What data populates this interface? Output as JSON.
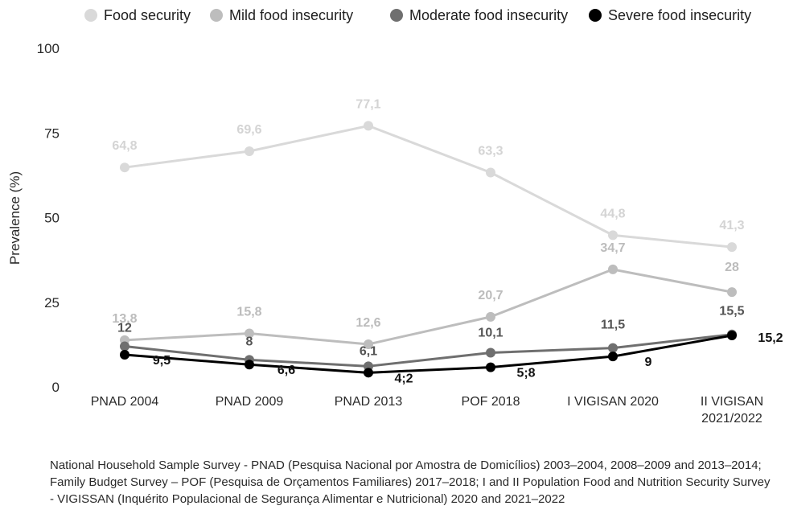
{
  "chart_data": {
    "type": "line",
    "ylabel": "Prevalence (%)",
    "ylim": [
      0,
      100
    ],
    "yticks": [
      "0",
      "25",
      "50",
      "75",
      "100"
    ],
    "categories": [
      "PNAD 2004",
      "PNAD 2009",
      "PNAD 2013",
      "POF 2018",
      "I VIGISAN 2020",
      "II VIGISAN\n2021/2022"
    ],
    "legend_position": "top",
    "grid": false,
    "series": [
      {
        "name": "Food security",
        "color": "#d9d9d9",
        "values": [
          64.8,
          69.6,
          77.1,
          63.3,
          44.8,
          41.3
        ],
        "labels": [
          "64,8",
          "69,6",
          "77,1",
          "63,3",
          "44,8",
          "41,3"
        ]
      },
      {
        "name": "Mild food insecurity",
        "color": "#bdbdbd",
        "values": [
          13.8,
          15.8,
          12.6,
          20.7,
          34.7,
          28
        ],
        "labels": [
          "13,8",
          "15,8",
          "12,6",
          "20,7",
          "34,7",
          "28"
        ]
      },
      {
        "name": "Moderate food insecurity",
        "color": "#6f6f6f",
        "values": [
          12,
          8,
          6.1,
          10.1,
          11.5,
          15.5
        ],
        "labels": [
          "12",
          "8",
          "6,1",
          "10,1",
          "11,5",
          "15,5"
        ]
      },
      {
        "name": "Severe food insecurity",
        "color": "#000000",
        "values": [
          9.5,
          6.6,
          4.2,
          5.8,
          9,
          15.2
        ],
        "labels": [
          "9,5",
          "6,6",
          "4;2",
          "5;8",
          "9",
          "15,2"
        ]
      }
    ]
  },
  "footnote": "National Household Sample Survey - PNAD (Pesquisa Nacional por Amostra de Domicílios) 2003–2004, 2008–2009 and 2013–2014; Family Budget Survey – POF (Pesquisa de Orçamentos Familiares) 2017–2018; I and II Population Food and Nutrition Security Survey - VIGISSAN (Inquérito Populacional de Segurança Alimentar e Nutricional) 2020 and 2021–2022"
}
